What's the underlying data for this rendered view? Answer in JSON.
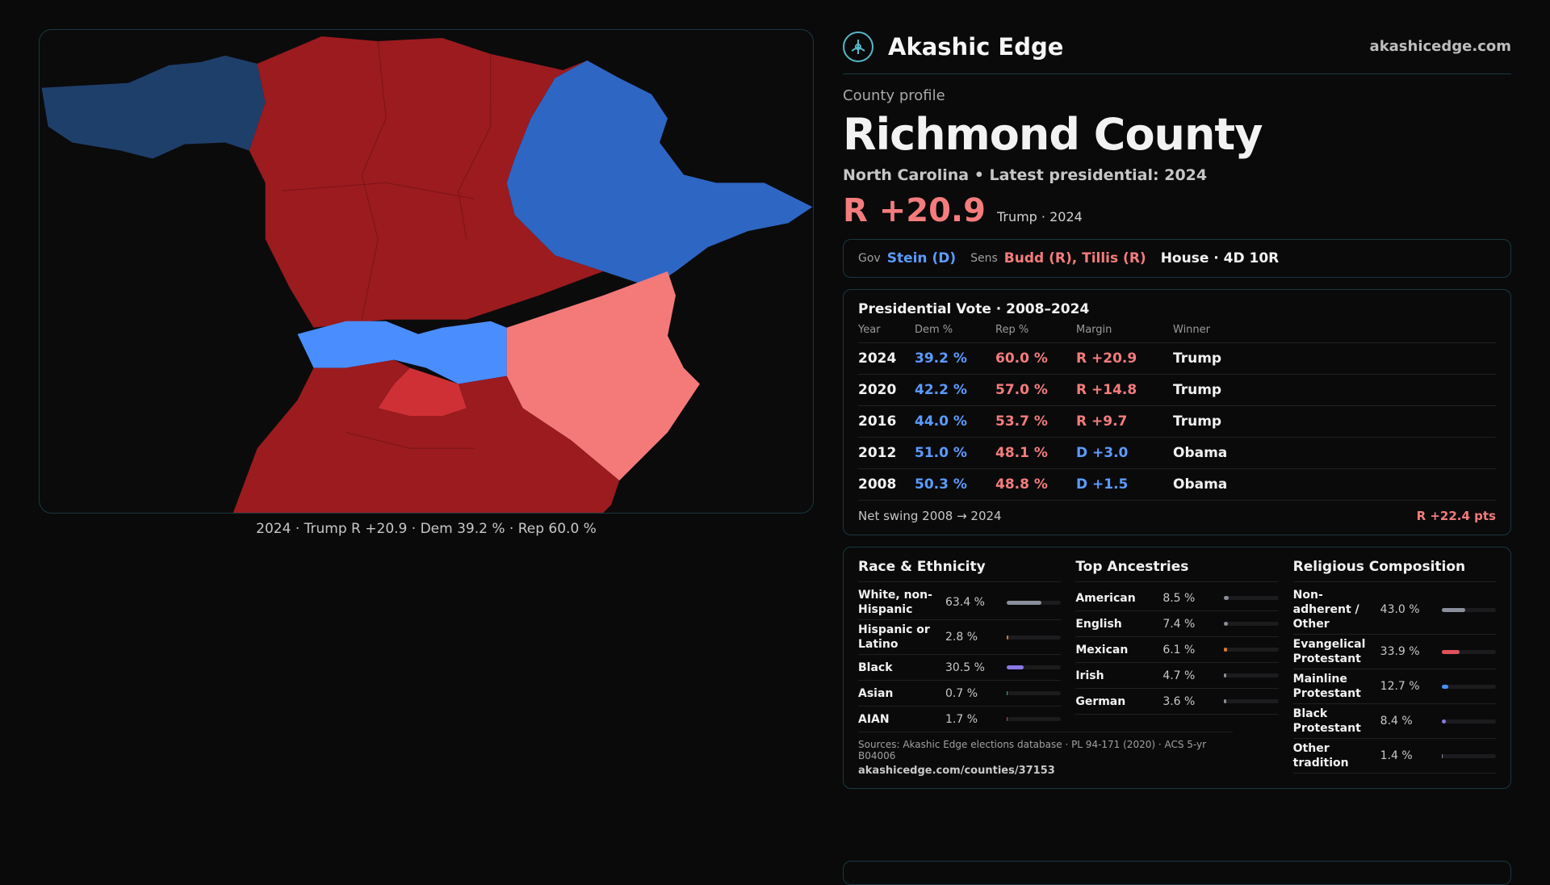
{
  "brand": {
    "name": "Akashic Edge",
    "url": "akashicedge.com",
    "logo_icon": "compass-icon"
  },
  "profile": {
    "eyebrow": "County profile",
    "county": "Richmond County",
    "subtitle": "North Carolina • Latest presidential: 2024",
    "margin": "R +20.9",
    "margin_sub": "Trump · 2024"
  },
  "reps": {
    "gov_label": "Gov",
    "gov": "Stein (D)",
    "sens_label": "Sens",
    "sens": "Budd (R), Tillis (R)",
    "house": "House · 4D 10R"
  },
  "map_caption": "2024 · Trump R +20.9 · Dem 39.2 % · Rep 60.0 %",
  "colors": {
    "strong_r": "#9b1b1f",
    "mid_r": "#cf3036",
    "lean_r": "#f47a7a",
    "strong_d": "#2e66c4",
    "lean_d": "#4a8dff",
    "dark_d": "#1f3f6b"
  },
  "votes": {
    "title": "Presidential Vote · 2008–2024",
    "headers": [
      "Year",
      "Dem %",
      "Rep %",
      "Margin",
      "Winner"
    ],
    "rows": [
      {
        "year": "2024",
        "dem": "39.2 %",
        "rep": "60.0 %",
        "margin": "R +20.9",
        "winner": "Trump",
        "party": "R"
      },
      {
        "year": "2020",
        "dem": "42.2 %",
        "rep": "57.0 %",
        "margin": "R +14.8",
        "winner": "Trump",
        "party": "R"
      },
      {
        "year": "2016",
        "dem": "44.0 %",
        "rep": "53.7 %",
        "margin": "R +9.7",
        "winner": "Trump",
        "party": "R"
      },
      {
        "year": "2012",
        "dem": "51.0 %",
        "rep": "48.1 %",
        "margin": "D +3.0",
        "winner": "Obama",
        "party": "D"
      },
      {
        "year": "2008",
        "dem": "50.3 %",
        "rep": "48.8 %",
        "margin": "D +1.5",
        "winner": "Obama",
        "party": "D"
      }
    ],
    "net_label": "Net swing 2008 → 2024",
    "net_value": "R +22.4 pts"
  },
  "race": {
    "title": "Race & Ethnicity",
    "items": [
      {
        "name": "White, non-Hispanic",
        "value": "63.4 %",
        "pct": 63.4,
        "color": "#8a8f9c"
      },
      {
        "name": "Hispanic or Latino",
        "value": "2.8 %",
        "pct": 2.8,
        "color": "#d9772b"
      },
      {
        "name": "Black",
        "value": "30.5 %",
        "pct": 30.5,
        "color": "#8b78e6"
      },
      {
        "name": "Asian",
        "value": "0.7 %",
        "pct": 0.7,
        "color": "#4aa3a0"
      },
      {
        "name": "AIAN",
        "value": "1.7 %",
        "pct": 1.7,
        "color": "#c0504d"
      }
    ]
  },
  "ancestry": {
    "title": "Top Ancestries",
    "items": [
      {
        "name": "American",
        "value": "8.5 %",
        "pct": 8.5,
        "color": "#8a8f9c"
      },
      {
        "name": "English",
        "value": "7.4 %",
        "pct": 7.4,
        "color": "#8a8f9c"
      },
      {
        "name": "Mexican",
        "value": "6.1 %",
        "pct": 6.1,
        "color": "#d9772b"
      },
      {
        "name": "Irish",
        "value": "4.7 %",
        "pct": 4.7,
        "color": "#8a8f9c"
      },
      {
        "name": "German",
        "value": "3.6 %",
        "pct": 3.6,
        "color": "#8a8f9c"
      }
    ]
  },
  "religion": {
    "title": "Religious Composition",
    "items": [
      {
        "name": "Non-adherent / Other",
        "value": "43.0 %",
        "pct": 43.0,
        "color": "#8a8f9c"
      },
      {
        "name": "Evangelical Protestant",
        "value": "33.9 %",
        "pct": 33.9,
        "color": "#e0525a"
      },
      {
        "name": "Mainline Protestant",
        "value": "12.7 %",
        "pct": 12.7,
        "color": "#4a8dff"
      },
      {
        "name": "Black Protestant",
        "value": "8.4 %",
        "pct": 8.4,
        "color": "#8b78e6"
      },
      {
        "name": "Other tradition",
        "value": "1.4 %",
        "pct": 1.4,
        "color": "#8a8f9c"
      }
    ]
  },
  "sources": {
    "text": "Sources: Akashic Edge elections database · PL 94-171 (2020) · ACS 5-yr B04006",
    "url": "akashicedge.com/counties/37153"
  }
}
